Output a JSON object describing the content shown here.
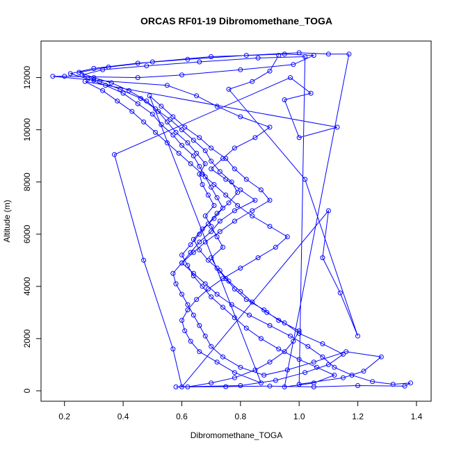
{
  "chart_data": {
    "type": "scatter",
    "title": "ORCAS RF01-19 Dibromomethane_TOGA",
    "xlabel": "Dibromomethane_TOGA",
    "ylabel": "Altitude (m)",
    "xlim": [
      0.12,
      1.45
    ],
    "ylim": [
      -400,
      13400
    ],
    "x_ticks": [
      0.2,
      0.4,
      0.6,
      0.8,
      1.0,
      1.2,
      1.4
    ],
    "x_tick_labels": [
      "0.2",
      "0.4",
      "0.6",
      "0.8",
      "1.0",
      "1.2",
      "1.4"
    ],
    "y_ticks": [
      0,
      2000,
      4000,
      6000,
      8000,
      10000,
      12000
    ],
    "y_tick_labels": [
      "0",
      "2000",
      "4000",
      "6000",
      "8000",
      "10000",
      "12000"
    ],
    "marker": "open-circle",
    "connect_points": true,
    "color": "#0000ff",
    "grid": false,
    "series": [
      {
        "points": [
          [
            0.62,
            150
          ],
          [
            0.7,
            300
          ],
          [
            0.78,
            500
          ],
          [
            0.85,
            800
          ],
          [
            0.9,
            1100
          ],
          [
            0.95,
            1500
          ],
          [
            0.98,
            1900
          ],
          [
            1.0,
            2300
          ],
          [
            0.93,
            2700
          ],
          [
            0.88,
            3100
          ],
          [
            0.82,
            3500
          ],
          [
            0.78,
            3900
          ],
          [
            0.75,
            4300
          ],
          [
            0.72,
            4700
          ],
          [
            0.7,
            5100
          ],
          [
            0.74,
            5500
          ],
          [
            0.72,
            5900
          ],
          [
            0.7,
            6300
          ],
          [
            0.68,
            6700
          ],
          [
            0.71,
            7100
          ],
          [
            0.69,
            7500
          ],
          [
            0.67,
            7900
          ],
          [
            0.66,
            8300
          ],
          [
            0.68,
            8700
          ],
          [
            0.65,
            9100
          ],
          [
            0.62,
            9500
          ],
          [
            0.58,
            9900
          ],
          [
            0.55,
            10300
          ],
          [
            0.52,
            10700
          ],
          [
            0.48,
            11100
          ],
          [
            0.42,
            11500
          ],
          [
            0.36,
            11800
          ],
          [
            0.3,
            12000
          ],
          [
            0.25,
            12200
          ],
          [
            0.35,
            12400
          ],
          [
            0.5,
            12600
          ],
          [
            0.7,
            12800
          ],
          [
            0.95,
            12900
          ],
          [
            1.05,
            12850
          ],
          [
            0.98,
            12500
          ],
          [
            0.8,
            12300
          ],
          [
            0.6,
            12100
          ],
          [
            0.45,
            12000
          ],
          [
            0.2,
            12050
          ],
          [
            0.16,
            12050
          ],
          [
            0.3,
            11900
          ],
          [
            0.55,
            11700
          ],
          [
            0.65,
            11300
          ],
          [
            0.72,
            10900
          ],
          [
            0.8,
            10500
          ],
          [
            0.9,
            10100
          ],
          [
            0.85,
            9700
          ],
          [
            0.78,
            9300
          ],
          [
            0.74,
            8900
          ],
          [
            0.7,
            8500
          ],
          [
            0.75,
            8100
          ],
          [
            0.8,
            7700
          ],
          [
            0.85,
            7300
          ],
          [
            0.78,
            6900
          ],
          [
            0.73,
            6500
          ],
          [
            0.7,
            6100
          ],
          [
            0.66,
            5700
          ],
          [
            0.63,
            5300
          ],
          [
            0.6,
            4900
          ],
          [
            0.64,
            4500
          ],
          [
            0.68,
            4100
          ],
          [
            0.72,
            3700
          ],
          [
            0.77,
            3300
          ],
          [
            0.83,
            2900
          ],
          [
            0.9,
            2500
          ],
          [
            0.97,
            2100
          ],
          [
            1.03,
            1700
          ],
          [
            1.08,
            1300
          ],
          [
            1.12,
            900
          ],
          [
            1.18,
            600
          ],
          [
            1.25,
            350
          ],
          [
            1.32,
            250
          ],
          [
            1.38,
            300
          ],
          [
            1.36,
            180
          ],
          [
            1.2,
            200
          ],
          [
            1.05,
            150
          ],
          [
            0.9,
            180
          ],
          [
            0.75,
            160
          ],
          [
            0.58,
            150
          ],
          [
            0.8,
            200
          ],
          [
            0.92,
            400
          ],
          [
            1.02,
            700
          ],
          [
            1.1,
            1000
          ],
          [
            1.15,
            1400
          ],
          [
            1.08,
            1800
          ],
          [
            1.0,
            2200
          ],
          [
            0.95,
            2600
          ],
          [
            0.89,
            3000
          ],
          [
            0.84,
            3400
          ],
          [
            0.8,
            3800
          ],
          [
            0.76,
            4200
          ],
          [
            0.73,
            4600
          ],
          [
            0.69,
            5000
          ],
          [
            0.66,
            5400
          ],
          [
            0.64,
            5800
          ],
          [
            0.67,
            6200
          ],
          [
            0.71,
            6600
          ],
          [
            0.74,
            7000
          ],
          [
            0.72,
            7400
          ],
          [
            0.7,
            7800
          ],
          [
            0.68,
            8200
          ],
          [
            0.66,
            8600
          ],
          [
            0.64,
            9000
          ],
          [
            0.6,
            9400
          ],
          [
            0.57,
            9800
          ],
          [
            0.53,
            10200
          ],
          [
            0.5,
            10600
          ],
          [
            0.45,
            11000
          ],
          [
            0.4,
            11400
          ],
          [
            0.34,
            11700
          ],
          [
            0.28,
            11950
          ],
          [
            0.22,
            12150
          ],
          [
            0.3,
            12350
          ],
          [
            0.45,
            12550
          ],
          [
            0.62,
            12700
          ],
          [
            0.82,
            12850
          ],
          [
            1.0,
            12950
          ],
          [
            1.1,
            12900
          ],
          [
            1.17,
            12900
          ],
          [
            0.95,
            150
          ],
          [
            1.05,
            300
          ],
          [
            1.12,
            600
          ],
          [
            1.06,
            900
          ],
          [
            1.0,
            1200
          ],
          [
            0.93,
            1600
          ],
          [
            0.87,
            2000
          ],
          [
            0.82,
            2400
          ],
          [
            0.78,
            2800
          ],
          [
            0.74,
            3200
          ],
          [
            0.7,
            3600
          ],
          [
            0.67,
            4000
          ],
          [
            0.64,
            4400
          ],
          [
            0.62,
            4800
          ],
          [
            0.6,
            5200
          ],
          [
            0.63,
            5600
          ],
          [
            0.66,
            6000
          ],
          [
            0.69,
            6400
          ],
          [
            0.72,
            6800
          ],
          [
            0.76,
            7200
          ],
          [
            0.79,
            7600
          ],
          [
            0.77,
            8000
          ],
          [
            0.73,
            8400
          ],
          [
            0.7,
            8800
          ],
          [
            0.68,
            9200
          ],
          [
            0.64,
            9600
          ],
          [
            0.6,
            10000
          ],
          [
            0.56,
            10400
          ],
          [
            0.51,
            10800
          ],
          [
            0.46,
            11200
          ],
          [
            0.39,
            11550
          ],
          [
            0.32,
            11850
          ],
          [
            0.26,
            12100
          ],
          [
            0.33,
            12300
          ],
          [
            0.48,
            12450
          ],
          [
            0.66,
            12600
          ],
          [
            0.86,
            12750
          ],
          [
            1.02,
            12800
          ],
          [
            1.0,
            250
          ],
          [
            1.15,
            500
          ],
          [
            1.22,
            750
          ],
          [
            1.28,
            1300
          ],
          [
            1.16,
            1500
          ],
          [
            1.05,
            1100
          ],
          [
            0.96,
            800
          ],
          [
            0.88,
            600
          ],
          [
            0.8,
            900
          ],
          [
            0.74,
            1300
          ],
          [
            0.7,
            1700
          ],
          [
            0.68,
            2100
          ],
          [
            0.66,
            2500
          ],
          [
            0.64,
            2900
          ],
          [
            0.62,
            3300
          ],
          [
            0.6,
            3700
          ],
          [
            0.58,
            4100
          ],
          [
            0.57,
            4500
          ],
          [
            0.6,
            4900
          ],
          [
            0.64,
            5300
          ],
          [
            0.68,
            5700
          ],
          [
            0.73,
            6100
          ],
          [
            0.78,
            6500
          ],
          [
            0.84,
            6900
          ],
          [
            0.9,
            7300
          ],
          [
            0.87,
            7700
          ],
          [
            0.82,
            8100
          ],
          [
            0.78,
            8500
          ],
          [
            0.75,
            8900
          ],
          [
            0.7,
            9300
          ],
          [
            0.66,
            9700
          ],
          [
            0.61,
            10100
          ],
          [
            0.57,
            10500
          ],
          [
            0.53,
            10900
          ],
          [
            0.49,
            11300
          ],
          [
            0.87,
            300
          ],
          [
            0.78,
            700
          ],
          [
            0.72,
            1100
          ],
          [
            0.66,
            1500
          ],
          [
            0.63,
            1900
          ],
          [
            0.61,
            2300
          ],
          [
            0.6,
            2700
          ],
          [
            0.62,
            3100
          ],
          [
            0.65,
            3500
          ],
          [
            0.69,
            3900
          ],
          [
            0.74,
            4300
          ],
          [
            0.8,
            4700
          ],
          [
            0.86,
            5100
          ],
          [
            0.92,
            5500
          ],
          [
            0.96,
            5900
          ],
          [
            0.9,
            6300
          ],
          [
            0.84,
            6700
          ],
          [
            0.79,
            7100
          ],
          [
            0.75,
            7500
          ],
          [
            0.71,
            7900
          ],
          [
            0.67,
            8300
          ],
          [
            0.63,
            8700
          ],
          [
            0.59,
            9100
          ],
          [
            0.55,
            9500
          ],
          [
            0.51,
            9900
          ],
          [
            0.47,
            10300
          ],
          [
            0.43,
            10700
          ],
          [
            0.38,
            11100
          ],
          [
            0.33,
            11500
          ],
          [
            0.27,
            11850
          ],
          [
            1.13,
            10100
          ],
          [
            1.0,
            9700
          ],
          [
            0.95,
            11150
          ],
          [
            1.04,
            11400
          ],
          [
            0.97,
            12000
          ],
          [
            0.37,
            9050
          ],
          [
            0.47,
            5000
          ],
          [
            0.57,
            1600
          ],
          [
            0.6,
            150
          ],
          [
            1.1,
            6900
          ],
          [
            1.08,
            5100
          ],
          [
            1.14,
            3750
          ],
          [
            1.2,
            2100
          ],
          [
            1.02,
            8100
          ],
          [
            0.76,
            11550
          ],
          [
            0.84,
            11850
          ],
          [
            0.9,
            12250
          ],
          [
            0.93,
            12850
          ]
        ]
      }
    ]
  }
}
